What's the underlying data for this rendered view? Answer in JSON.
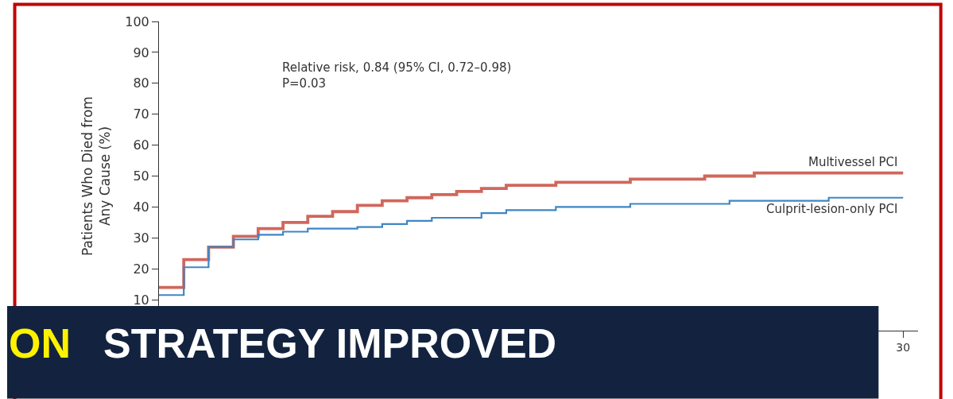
{
  "chart_data": {
    "type": "step",
    "ylabel": "Patients Who Died from\nAny Cause (%)",
    "categories": [
      null,
      null,
      null,
      null,
      null,
      null,
      null,
      null,
      null,
      null,
      null,
      null,
      null,
      null,
      null,
      null,
      null,
      null,
      null,
      null,
      null,
      null,
      null,
      null,
      null,
      null,
      null,
      null,
      null,
      null,
      "30"
    ],
    "ylim": [
      0,
      100
    ],
    "yticks": [
      10,
      20,
      30,
      40,
      50,
      60,
      70,
      80,
      90,
      100
    ],
    "legend": false,
    "marker": "none",
    "line_style": "solid",
    "annotations": [
      "Relative risk, 0.84 (95% CI, 0.72–0.98)\nP=0.03",
      "ON",
      "STRATEGY IMPROVED"
    ],
    "series": [
      {
        "name": "Multivessel PCI",
        "color": "#d0675d",
        "values": [
          14,
          23,
          27,
          30.5,
          33,
          35,
          37,
          38.5,
          40.5,
          42,
          43,
          44,
          45,
          46,
          47,
          47,
          48,
          48,
          48,
          49,
          49,
          49,
          50,
          50,
          51,
          51,
          51,
          51,
          51,
          51,
          51
        ]
      },
      {
        "name": "Culprit-lesion-only PCI",
        "color": "#3f86c4",
        "values": [
          11.5,
          20.5,
          27,
          29.5,
          31,
          32,
          33,
          33,
          33.5,
          34.5,
          35.5,
          36.5,
          36.5,
          38,
          39,
          39,
          40,
          40,
          40,
          41,
          41,
          41,
          41,
          42,
          42,
          42,
          42,
          43,
          43,
          43,
          43
        ]
      }
    ]
  }
}
